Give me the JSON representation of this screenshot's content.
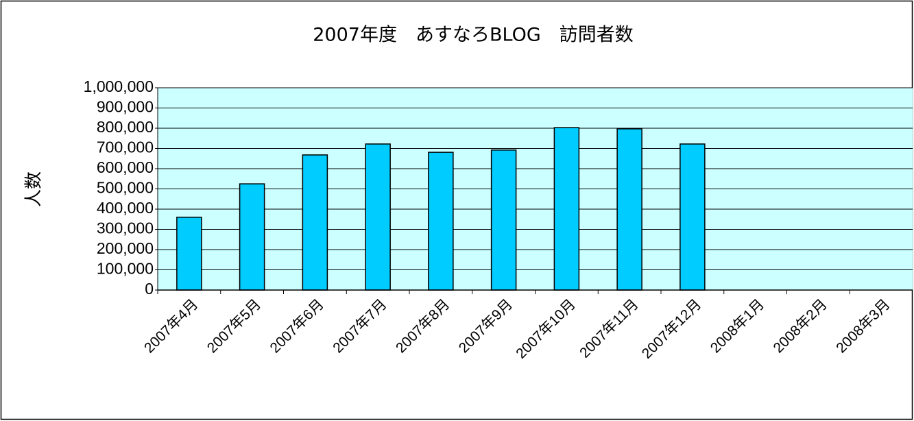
{
  "chart_data": {
    "type": "bar",
    "title": "2007年度　あすなろBLOG　訪問者数",
    "y_label": "人数",
    "categories": [
      "2007年4月",
      "2007年5月",
      "2007年6月",
      "2007年7月",
      "2007年8月",
      "2007年9月",
      "2007年10月",
      "2007年11月",
      "2007年12月",
      "2008年1月",
      "2008年2月",
      "2008年3月"
    ],
    "values": [
      360000,
      525000,
      668000,
      722000,
      681000,
      692000,
      803000,
      797000,
      722000,
      null,
      null,
      null
    ],
    "color": "#00ccff",
    "plot_background": "#ccffff",
    "ylim": [
      0,
      1000000
    ],
    "yticks": [
      0,
      {
        "value": 100000,
        "label": "100,000"
      },
      {
        "value": 200000,
        "label": "200,000"
      },
      {
        "value": 300000,
        "label": "300,000"
      },
      {
        "value": 400000,
        "label": "400,000"
      },
      {
        "value": 500000,
        "label": "500,000"
      },
      {
        "value": 600000,
        "label": "600,000"
      },
      {
        "value": 700000,
        "label": "700,000"
      },
      {
        "value": 800000,
        "label": "800,000"
      },
      {
        "value": 900000,
        "label": "900,000"
      },
      {
        "value": 1000000,
        "label": "1,000,000"
      }
    ],
    "grid": true
  }
}
